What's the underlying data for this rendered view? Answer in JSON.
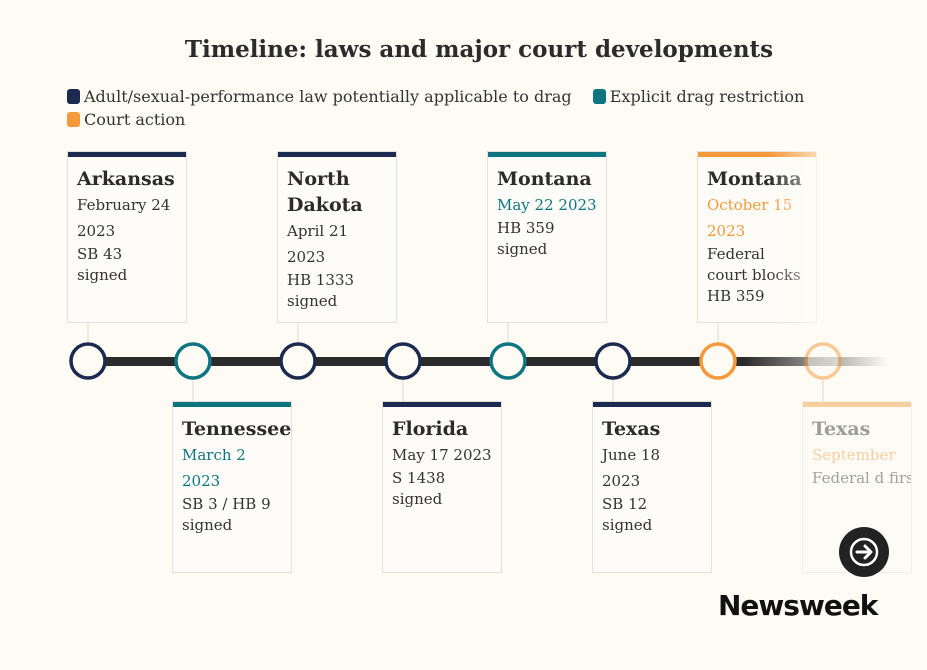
{
  "title": "Timeline: laws and major court developments",
  "legend": [
    {
      "label": "Adult/sexual-performance law potentially applicable to drag",
      "color": "#1b2a4e"
    },
    {
      "label": "Explicit drag restriction",
      "color": "#0e7480"
    },
    {
      "label": "Court action",
      "color": "#f5993a"
    }
  ],
  "events": [
    {
      "state": "Arkansas",
      "date": "February 24 2023",
      "desc": "SB 43 signed",
      "category": "adult",
      "position": "top"
    },
    {
      "state": "Tennessee",
      "date": "March 2 2023",
      "desc": "SB 3 / HB 9 signed",
      "category": "drag",
      "position": "bottom"
    },
    {
      "state": "North Dakota",
      "date": "April 21 2023",
      "desc": "HB 1333 signed",
      "category": "adult",
      "position": "top"
    },
    {
      "state": "Florida",
      "date": "May 17 2023",
      "desc": "S 1438 signed",
      "category": "adult",
      "position": "bottom"
    },
    {
      "state": "Montana",
      "date": "May 22 2023",
      "desc": "HB 359 signed",
      "category": "drag",
      "position": "top"
    },
    {
      "state": "Texas",
      "date": "June 18 2023",
      "desc": "SB 12 signed",
      "category": "adult",
      "position": "bottom"
    },
    {
      "state": "Montana",
      "date": "October 15 2023",
      "desc": "Federal court blocks HB 359",
      "category": "court",
      "position": "top"
    },
    {
      "state": "Texas",
      "date": "September",
      "desc": "Federal d first rules unconstit",
      "category": "court",
      "position": "bottom"
    }
  ],
  "next_icon": "arrow-right-icon",
  "brand": "Newsweek"
}
